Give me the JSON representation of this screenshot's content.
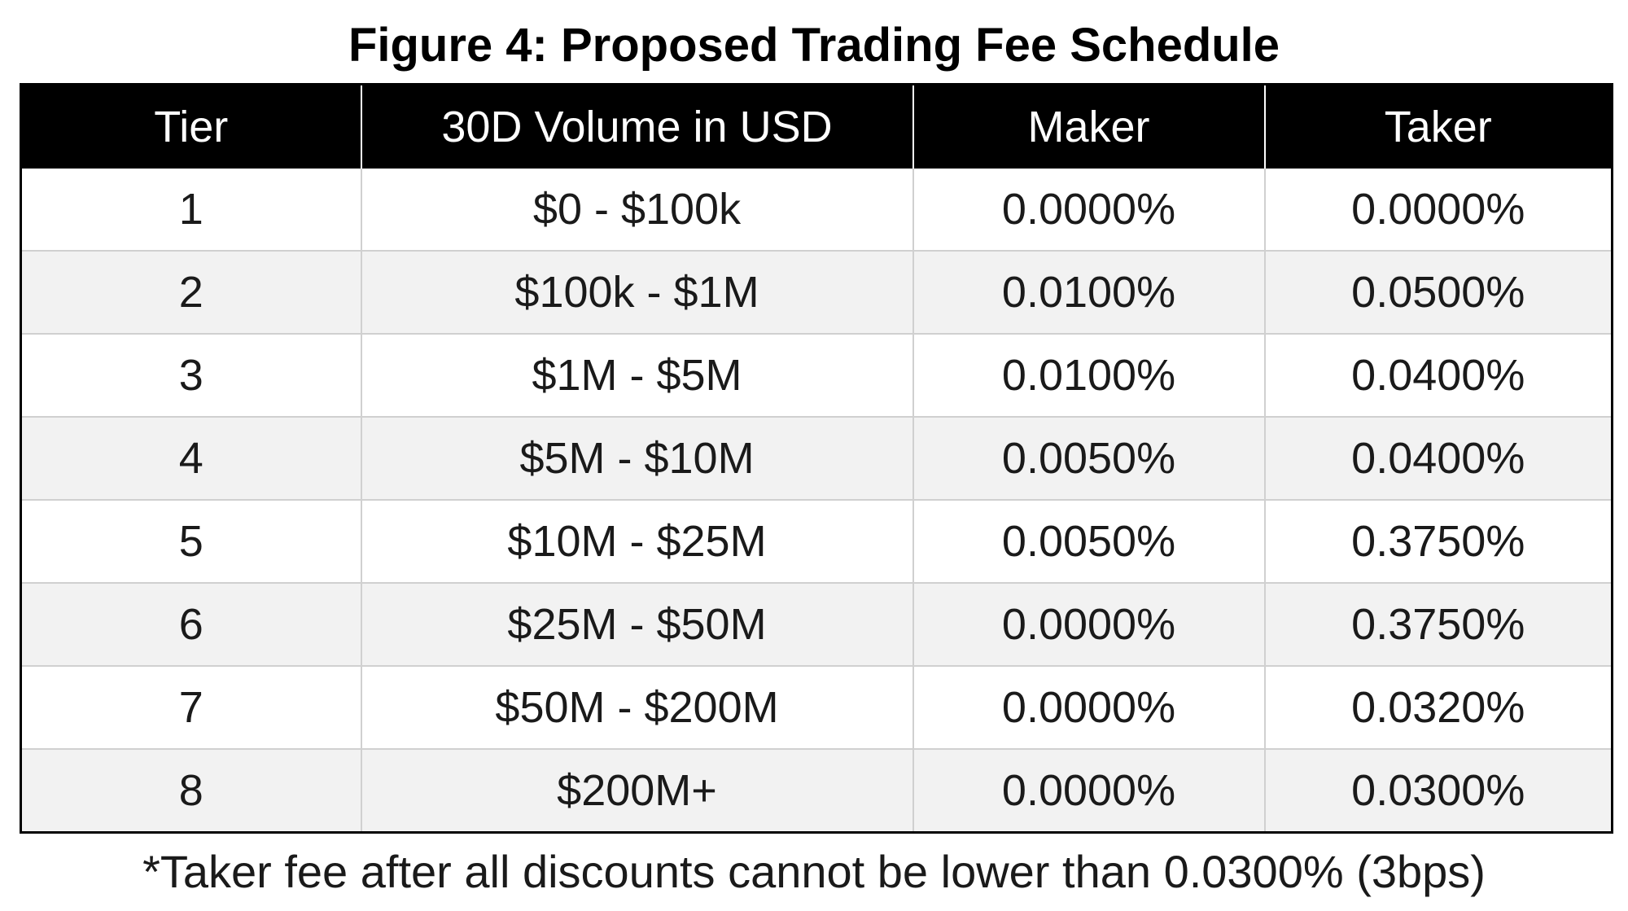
{
  "figure": {
    "title": "Figure 4: Proposed Trading Fee Schedule",
    "footnote": "*Taker fee after all discounts cannot be lower than 0.0300% (3bps)"
  },
  "table": {
    "headers": [
      "Tier",
      "30D Volume in USD",
      "Maker",
      "Taker"
    ],
    "rows": [
      [
        "1",
        "$0 - $100k",
        "0.0000%",
        "0.0000%"
      ],
      [
        "2",
        "$100k - $1M",
        "0.0100%",
        "0.0500%"
      ],
      [
        "3",
        "$1M - $5M",
        "0.0100%",
        "0.0400%"
      ],
      [
        "4",
        "$5M - $10M",
        "0.0050%",
        "0.0400%"
      ],
      [
        "5",
        "$10M - $25M",
        "0.0050%",
        "0.3750%"
      ],
      [
        "6",
        "$25M - $50M",
        "0.0000%",
        "0.3750%"
      ],
      [
        "7",
        "$50M - $200M",
        "0.0000%",
        "0.0320%"
      ],
      [
        "8",
        "$200M+",
        "0.0000%",
        "0.0300%"
      ]
    ]
  },
  "colors": {
    "header_background": "#000000",
    "header_text": "#ffffff",
    "row_alt_background": "#f2f2f2",
    "row_background": "#ffffff"
  }
}
